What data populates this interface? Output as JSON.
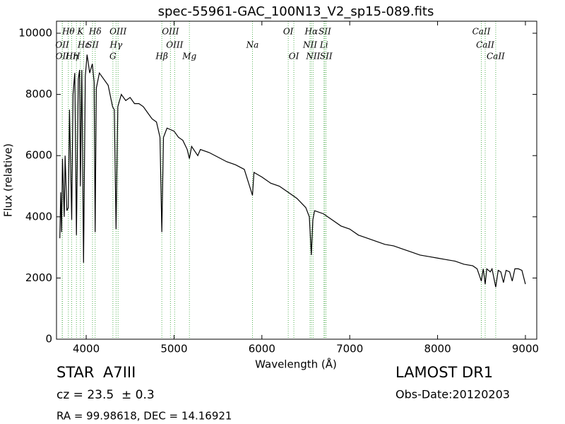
{
  "chart_data": {
    "type": "line",
    "title": "spec-55961-GAC_100N13_V2_sp15-089.fits",
    "x_label": "Wavelength (Å)",
    "y_label": "Flux (relative)",
    "color": "#000000",
    "line_color": "#55b155",
    "grid": false,
    "xlim": [
      3662,
      9129
    ],
    "ylim": [
      0,
      10393
    ],
    "xticks": [
      4000,
      5000,
      6000,
      7000,
      8000,
      9000
    ],
    "yticks": [
      0,
      2000,
      4000,
      6000,
      8000,
      10000
    ],
    "x": [
      3700,
      3710,
      3720,
      3730,
      3750,
      3760,
      3780,
      3797,
      3810,
      3835,
      3850,
      3870,
      3889,
      3910,
      3925,
      3934,
      3950,
      3970,
      3990,
      4010,
      4040,
      4070,
      4090,
      4102,
      4115,
      4150,
      4200,
      4250,
      4300,
      4320,
      4340,
      4360,
      4400,
      4450,
      4500,
      4550,
      4600,
      4650,
      4700,
      4750,
      4800,
      4840,
      4861,
      4880,
      4920,
      5000,
      5050,
      5100,
      5150,
      5175,
      5200,
      5270,
      5300,
      5400,
      5500,
      5600,
      5700,
      5800,
      5893,
      5910,
      6000,
      6100,
      6200,
      6300,
      6400,
      6500,
      6540,
      6563,
      6580,
      6600,
      6700,
      6800,
      6900,
      7000,
      7100,
      7200,
      7300,
      7400,
      7500,
      7600,
      7700,
      7800,
      7900,
      8000,
      8100,
      8200,
      8300,
      8400,
      8450,
      8480,
      8498,
      8520,
      8542,
      8560,
      8600,
      8620,
      8662,
      8690,
      8720,
      8750,
      8780,
      8820,
      8850,
      8880,
      8920,
      8960,
      9000
    ],
    "values": [
      3300,
      4800,
      3500,
      5900,
      4000,
      6000,
      4200,
      4300,
      7500,
      3900,
      8000,
      8700,
      3400,
      8500,
      8800,
      5000,
      8800,
      2500,
      8600,
      9300,
      8700,
      9000,
      8400,
      3500,
      8200,
      8700,
      8500,
      8300,
      7600,
      7500,
      3600,
      7600,
      8000,
      7800,
      7900,
      7700,
      7700,
      7600,
      7400,
      7200,
      7100,
      6600,
      3500,
      6600,
      6900,
      6800,
      6600,
      6500,
      6200,
      5900,
      6300,
      6000,
      6200,
      6100,
      5950,
      5800,
      5700,
      5550,
      4700,
      5450,
      5300,
      5100,
      5000,
      4800,
      4600,
      4300,
      4000,
      2750,
      3900,
      4200,
      4100,
      3900,
      3700,
      3600,
      3400,
      3300,
      3200,
      3100,
      3050,
      2950,
      2850,
      2750,
      2700,
      2650,
      2600,
      2550,
      2450,
      2400,
      2300,
      2050,
      1900,
      2300,
      1800,
      2300,
      2200,
      2300,
      1700,
      2250,
      2200,
      1850,
      2250,
      2200,
      1900,
      2300,
      2300,
      2250,
      1800
    ],
    "lines": [
      {
        "x": 3797,
        "label": "Hθ"
      },
      {
        "x": 3934,
        "label": "K"
      },
      {
        "x": 4102,
        "label": "Hδ"
      },
      {
        "x": 4363,
        "label": "OIII"
      },
      {
        "x": 4959,
        "label": "OIII"
      },
      {
        "x": 6300,
        "label": "OI"
      },
      {
        "x": 6563,
        "label": "Hα"
      },
      {
        "x": 6716,
        "label": "SII"
      },
      {
        "x": 8498,
        "label": "CaII"
      },
      {
        "x": 3727,
        "label": "OII"
      },
      {
        "x": 3970,
        "label": "Hε"
      },
      {
        "x": 4072,
        "label": "SII"
      },
      {
        "x": 4340,
        "label": "Hγ"
      },
      {
        "x": 5007,
        "label": "OIII"
      },
      {
        "x": 6548,
        "label": "NII"
      },
      {
        "x": 6707,
        "label": "Li"
      },
      {
        "x": 8542,
        "label": "CaII"
      },
      {
        "x": 3729,
        "label": "OII"
      },
      {
        "x": 3835,
        "label": "Hη"
      },
      {
        "x": 3889,
        "label": "H"
      },
      {
        "x": 4304,
        "label": "G"
      },
      {
        "x": 4861,
        "label": "Hβ"
      },
      {
        "x": 5175,
        "label": "Mg"
      },
      {
        "x": 5893,
        "label": "Na"
      },
      {
        "x": 6364,
        "label": "OI"
      },
      {
        "x": 6583,
        "label": "NII"
      },
      {
        "x": 6731,
        "label": "SII"
      },
      {
        "x": 8662,
        "label": "CaII"
      }
    ]
  },
  "footer": {
    "class": "STAR",
    "subclass": "A7III",
    "redshift": "cz = 23.5  ± 0.3",
    "coords": "RA = 99.98618, DEC = 14.16921",
    "survey": "LAMOST DR1",
    "date": "Obs-Date:20120203"
  }
}
